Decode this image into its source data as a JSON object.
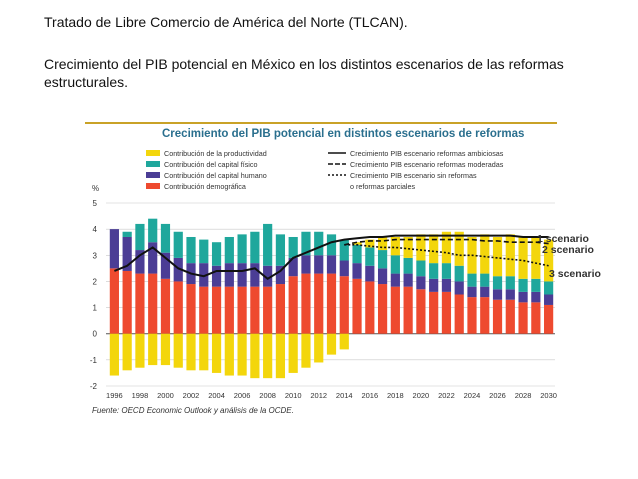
{
  "slide": {
    "title": "Tratado de Libre Comercio de América del Norte (TLCAN).",
    "description": "Crecimiento del PIB potencial en México en los distintos escenarios de las reformas estructurales."
  },
  "chart_data": {
    "type": "bar",
    "title": "Crecimiento del PIB potencial en distintos escenarios de reformas",
    "ylabel": "%",
    "ylim": [
      -2,
      5
    ],
    "yticks": [
      5,
      4,
      3,
      2,
      1,
      0,
      -1,
      -2
    ],
    "years": [
      1996,
      1997,
      1998,
      1999,
      2000,
      2001,
      2002,
      2003,
      2004,
      2005,
      2006,
      2007,
      2008,
      2009,
      2010,
      2011,
      2012,
      2013,
      2014,
      2015,
      2016,
      2017,
      2018,
      2019,
      2020,
      2021,
      2022,
      2023,
      2024,
      2025,
      2026,
      2027,
      2028,
      2029,
      2030
    ],
    "xtick_labels": [
      "1996",
      "1998",
      "2000",
      "2002",
      "2004",
      "2006",
      "2008",
      "2010",
      "2012",
      "2014",
      "2016",
      "2018",
      "2020",
      "2022",
      "2024",
      "2026",
      "2028",
      "2030"
    ],
    "series": [
      {
        "name": "Contribución demográfica",
        "color": "#ee4a2f",
        "values": [
          2.5,
          2.4,
          2.3,
          2.3,
          2.1,
          2.0,
          1.9,
          1.8,
          1.8,
          1.8,
          1.8,
          1.8,
          1.8,
          1.9,
          2.2,
          2.3,
          2.3,
          2.3,
          2.2,
          2.1,
          2.0,
          1.9,
          1.8,
          1.8,
          1.7,
          1.6,
          1.6,
          1.5,
          1.4,
          1.4,
          1.3,
          1.3,
          1.2,
          1.2,
          1.1
        ]
      },
      {
        "name": "Contribución del capital humano",
        "color": "#4b3d95",
        "values": [
          1.5,
          1.3,
          0.9,
          1.2,
          1.0,
          0.9,
          0.8,
          0.9,
          0.8,
          0.9,
          0.9,
          0.9,
          0.8,
          0.7,
          0.7,
          0.7,
          0.7,
          0.7,
          0.6,
          0.6,
          0.6,
          0.6,
          0.5,
          0.5,
          0.5,
          0.5,
          0.5,
          0.5,
          0.4,
          0.4,
          0.4,
          0.4,
          0.4,
          0.4,
          0.4
        ]
      },
      {
        "name": "Contribución del capital físico",
        "color": "#1fa79c",
        "values": [
          0.0,
          0.2,
          1.0,
          0.9,
          1.1,
          1.0,
          1.0,
          0.9,
          0.9,
          1.0,
          1.1,
          1.2,
          1.6,
          1.2,
          0.8,
          0.9,
          0.9,
          0.8,
          0.8,
          0.7,
          0.7,
          0.7,
          0.7,
          0.6,
          0.6,
          0.6,
          0.6,
          0.6,
          0.5,
          0.5,
          0.5,
          0.5,
          0.5,
          0.5,
          0.5
        ]
      },
      {
        "name": "Contribución de la productividad",
        "color": "#f3d60c",
        "values": [
          -1.6,
          -1.4,
          -1.3,
          -1.2,
          -1.2,
          -1.3,
          -1.4,
          -1.4,
          -1.5,
          -1.6,
          -1.6,
          -1.7,
          -1.7,
          -1.7,
          -1.5,
          -1.3,
          -1.1,
          -0.8,
          -0.6,
          0.1,
          0.3,
          0.5,
          0.7,
          0.8,
          1.0,
          1.1,
          1.2,
          1.3,
          1.4,
          1.5,
          1.5,
          1.6,
          1.6,
          1.6,
          1.6
        ]
      }
    ],
    "lines": [
      {
        "name": "Crecimiento PIB escenario reformas ambiciosas",
        "style": "solid",
        "values": [
          2.4,
          2.6,
          3.0,
          3.3,
          2.9,
          2.5,
          2.3,
          2.2,
          2.4,
          2.4,
          2.4,
          2.5,
          2.1,
          2.4,
          2.9,
          3.1,
          3.3,
          3.5,
          3.6,
          3.65,
          3.7,
          3.7,
          3.75,
          3.75,
          3.75,
          3.75,
          3.75,
          3.75,
          3.75,
          3.75,
          3.75,
          3.75,
          3.7,
          3.7,
          3.7
        ]
      },
      {
        "name": "Crecimiento PIB escenario reformas moderadas",
        "style": "dashed",
        "values": [
          null,
          null,
          null,
          null,
          null,
          null,
          null,
          null,
          null,
          null,
          null,
          null,
          null,
          null,
          null,
          null,
          null,
          null,
          3.4,
          3.5,
          3.55,
          3.55,
          3.6,
          3.6,
          3.6,
          3.6,
          3.6,
          3.6,
          3.6,
          3.55,
          3.55,
          3.5,
          3.5,
          3.5,
          3.45
        ]
      },
      {
        "name": "Crecimiento PIB escenario sin reformas o reformas parciales",
        "style": "dotted",
        "values": [
          null,
          null,
          null,
          null,
          null,
          null,
          null,
          null,
          null,
          null,
          null,
          null,
          null,
          null,
          null,
          null,
          null,
          null,
          3.4,
          3.4,
          3.35,
          3.3,
          3.3,
          3.25,
          3.2,
          3.15,
          3.1,
          3.0,
          3.0,
          2.95,
          2.9,
          2.85,
          2.8,
          2.7,
          2.6
        ]
      }
    ],
    "legend_left": [
      "Contribución de la productividad",
      "Contribución del capital físico",
      "Contribución del capital humano",
      "Contribución demográfica"
    ],
    "legend_right": [
      "Crecimiento PIB escenario reformas ambiciosas",
      "Crecimiento PIB escenario reformas moderadas",
      "Crecimiento PIB escenario sin reformas",
      "o reformas parciales"
    ],
    "annotations": [
      "1 scenario",
      "2 scenario",
      "3 scenario"
    ],
    "source": "Fuente: OECD Economic Outlook y análisis de la OCDE."
  }
}
